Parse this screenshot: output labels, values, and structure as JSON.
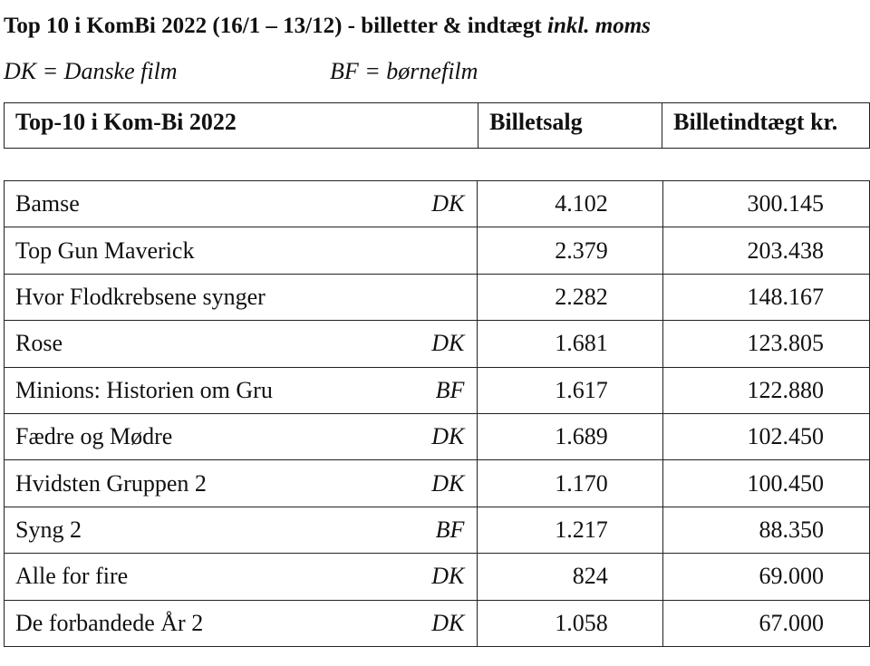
{
  "heading": {
    "title_bold": "Top 10 i KomBi 2022 (16/1 – 13/12) - billetter & indtægt ",
    "title_italic": "inkl. moms"
  },
  "legend": {
    "dk": "DK = Danske film",
    "bf": "BF = børnefilm"
  },
  "table": {
    "headers": {
      "title": "Top-10 i Kom-Bi 2022",
      "tickets": "Billetsalg",
      "revenue": "Billetindtægt kr."
    },
    "rows": [
      {
        "title": "Bamse",
        "tag": "DK",
        "tickets": "4.102",
        "revenue": "300.145"
      },
      {
        "title": "Top Gun Maverick",
        "tag": "",
        "tickets": "2.379",
        "revenue": "203.438"
      },
      {
        "title": "Hvor Flodkrebsene synger",
        "tag": "",
        "tickets": "2.282",
        "revenue": "148.167"
      },
      {
        "title": "Rose",
        "tag": "DK",
        "tickets": "1.681",
        "revenue": "123.805"
      },
      {
        "title": "Minions: Historien om Gru",
        "tag": "BF",
        "tickets": "1.617",
        "revenue": "122.880"
      },
      {
        "title": "Fædre og Mødre",
        "tag": "DK",
        "tickets": "1.689",
        "revenue": "102.450"
      },
      {
        "title": "Hvidsten Gruppen 2",
        "tag": "DK",
        "tickets": "1.170",
        "revenue": "100.450"
      },
      {
        "title": "Syng 2",
        "tag": "BF",
        "tickets": "1.217",
        "revenue": "88.350"
      },
      {
        "title": "Alle for fire",
        "tag": "DK",
        "tickets": "824",
        "revenue": "69.000"
      },
      {
        "title": "De forbandede År 2",
        "tag": "DK",
        "tickets": "1.058",
        "revenue": "67.000"
      }
    ]
  }
}
